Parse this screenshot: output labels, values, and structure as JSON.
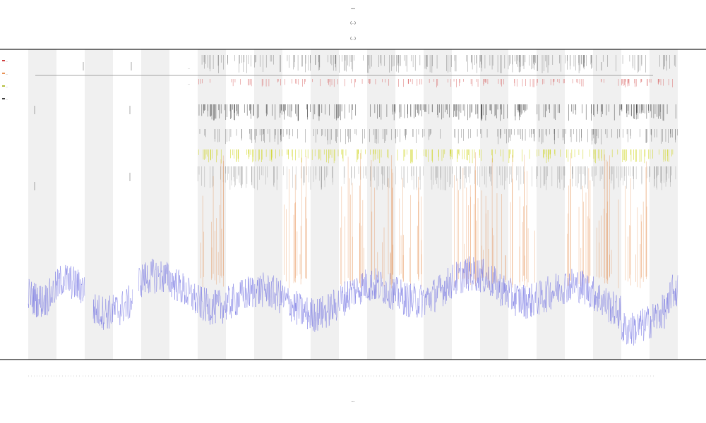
{
  "title": "...",
  "subtitle_1": "(...)",
  "subtitle_2": "(...)",
  "xlabel": "...",
  "legend_items": [
    {
      "label": "...",
      "color": "#c00000"
    },
    {
      "label": "...",
      "color": "#e07020"
    },
    {
      "label": "...",
      "color": "#9aa800"
    },
    {
      "label": "...",
      "color": "#000000"
    }
  ],
  "track_labels": [
    "...",
    "..."
  ],
  "colors": {
    "band_shade": "#f0f0f0",
    "trace": "#6a6ae0",
    "spike": "#e07020",
    "axis": "#222222",
    "marker_red": "#d04040",
    "marker_yellow": "#c8d000",
    "marker_dark": "#333333"
  },
  "chart_data": {
    "type": "line",
    "grid": false,
    "bands": 23,
    "shaded_band_parity": "even",
    "active_band_range": [
      6,
      23
    ],
    "x_tick_count": 220,
    "xlim": [
      0,
      23
    ],
    "ylim": [
      0,
      1
    ],
    "series": [
      {
        "name": "...",
        "baseline": 0.22,
        "noise": 0.06
      },
      {
        "name": "...",
        "peaks_in_bands": [
          6,
          9,
          11,
          12,
          13,
          15,
          16,
          17,
          19,
          20,
          21
        ]
      }
    ]
  }
}
